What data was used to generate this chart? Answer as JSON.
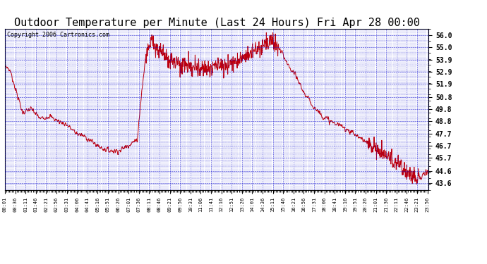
{
  "title": "Outdoor Temperature per Minute (Last 24 Hours) Fri Apr 28 00:00",
  "copyright": "Copyright 2006 Cartronics.com",
  "yticks": [
    43.6,
    44.6,
    45.7,
    46.7,
    47.7,
    48.8,
    49.8,
    50.8,
    51.9,
    52.9,
    53.9,
    55.0,
    56.0
  ],
  "ymin": 43.0,
  "ymax": 56.5,
  "line_color": "#cc0000",
  "bg_color": "#ffffff",
  "plot_bg_color": "#ffffff",
  "grid_color": "#0000cc",
  "title_fontsize": 11,
  "copyright_fontsize": 6,
  "tick_step_minutes": 35,
  "n_points": 1440
}
